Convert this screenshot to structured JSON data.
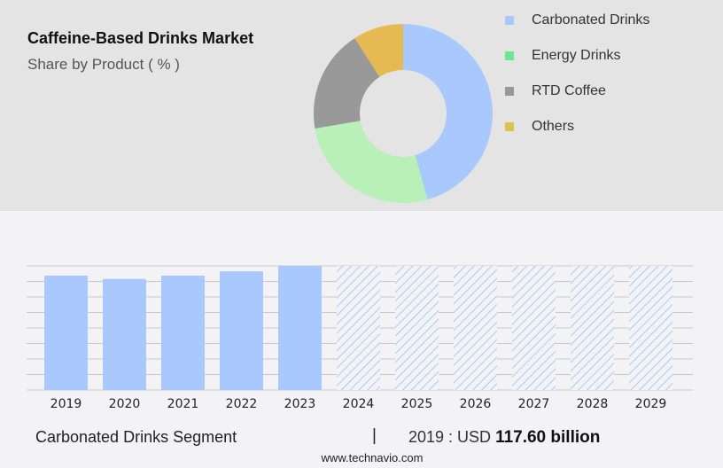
{
  "title": "Caffeine-Based Drinks Market",
  "subtitle": "Share by Product ( % )",
  "chart_data": [
    {
      "type": "pie",
      "donut": true,
      "categories": [
        "Carbonated Drinks",
        "Energy Drinks",
        "RTD Coffee",
        "Others"
      ],
      "values": [
        45.6,
        26.7,
        18.6,
        9.1
      ],
      "colors": [
        "#a8c8fe",
        "#b8f0b8",
        "#999999",
        "#e6ba52"
      ],
      "legend_colors": [
        "#a8c8fe",
        "#6ee68e",
        "#999999",
        "#e0c050"
      ],
      "legend": "right"
    },
    {
      "type": "bar",
      "categories": [
        "2019",
        "2020",
        "2021",
        "2022",
        "2023",
        "2024",
        "2025",
        "2026",
        "2027",
        "2028",
        "2029"
      ],
      "values": [
        117.6,
        114.2,
        117.6,
        122.0,
        127.6,
        null,
        null,
        null,
        null,
        null,
        null
      ],
      "forecast": [
        false,
        false,
        false,
        false,
        false,
        true,
        true,
        true,
        true,
        true,
        true
      ],
      "ylim": [
        0,
        127.6
      ],
      "grid": true,
      "color": "#a8c8fe"
    }
  ],
  "footer": {
    "segment": "Carbonated Drinks Segment",
    "separator": "|",
    "year_label": "2019 : USD ",
    "value": "117.60 billion"
  },
  "site": "www.technavio.com"
}
